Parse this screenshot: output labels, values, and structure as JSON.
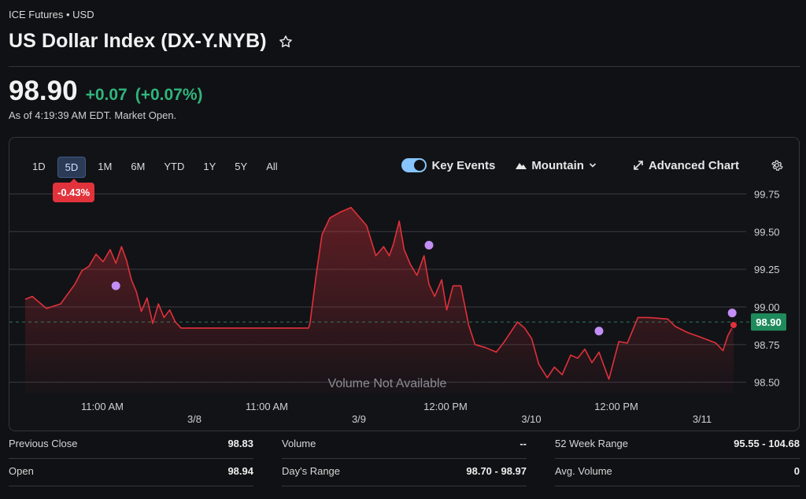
{
  "header": {
    "exchange": "ICE Futures • USD",
    "title": "US Dollar Index (DX-Y.NYB)",
    "price": "98.90",
    "change": "+0.07",
    "change_pct": "(+0.07%)",
    "as_of": "As of 4:19:39 AM EDT. Market Open."
  },
  "chart_toolbar": {
    "ranges": [
      "1D",
      "5D",
      "1M",
      "6M",
      "YTD",
      "1Y",
      "5Y",
      "All"
    ],
    "active_range": "5D",
    "period_change_badge": "-0.43%",
    "key_events_label": "Key Events",
    "mountain_label": "Mountain",
    "advanced_chart_label": "Advanced Chart"
  },
  "chart_overlay": {
    "volume_note": "Volume Not Available",
    "current_price_tag": "98.90"
  },
  "colors": {
    "line": "#e0313a",
    "positive": "#2fb57c",
    "event_dot": "#c38ef5",
    "price_tag": "#1f8a5b"
  },
  "chart_data": {
    "type": "area",
    "y_ticks": [
      "99.75",
      "99.50",
      "99.25",
      "99.00",
      "98.75",
      "98.50"
    ],
    "ylim": [
      98.42,
      99.82
    ],
    "reference_line": 98.9,
    "time_labels": [
      "11:00 AM",
      "11:00 AM",
      "12:00 PM",
      "12:00 PM"
    ],
    "date_labels": [
      "3/8",
      "3/9",
      "3/10",
      "3/11"
    ],
    "x_range": [
      0,
      100
    ],
    "values": [
      [
        0,
        99.05
      ],
      [
        1,
        99.07
      ],
      [
        3,
        98.99
      ],
      [
        5,
        99.02
      ],
      [
        7,
        99.15
      ],
      [
        8,
        99.24
      ],
      [
        9,
        99.27
      ],
      [
        10,
        99.35
      ],
      [
        11,
        99.3
      ],
      [
        12,
        99.38
      ],
      [
        12.8,
        99.29
      ],
      [
        13.6,
        99.4
      ],
      [
        14.3,
        99.31
      ],
      [
        15,
        99.18
      ],
      [
        15.7,
        99.1
      ],
      [
        16.4,
        98.97
      ],
      [
        17.2,
        99.06
      ],
      [
        18,
        98.89
      ],
      [
        18.8,
        99.02
      ],
      [
        19.6,
        98.93
      ],
      [
        20.4,
        98.98
      ],
      [
        21.2,
        98.9
      ],
      [
        22,
        98.86
      ],
      [
        40,
        98.86
      ],
      [
        40.2,
        98.89
      ],
      [
        41.1,
        99.22
      ],
      [
        41.9,
        99.48
      ],
      [
        43,
        99.59
      ],
      [
        44.5,
        99.63
      ],
      [
        46,
        99.66
      ],
      [
        47.1,
        99.6
      ],
      [
        48.2,
        99.54
      ],
      [
        49.5,
        99.34
      ],
      [
        50.6,
        99.4
      ],
      [
        51.4,
        99.34
      ],
      [
        52,
        99.42
      ],
      [
        52.8,
        99.57
      ],
      [
        53.5,
        99.38
      ],
      [
        54.4,
        99.28
      ],
      [
        55.3,
        99.21
      ],
      [
        56.3,
        99.34
      ],
      [
        57,
        99.15
      ],
      [
        57.8,
        99.07
      ],
      [
        58.8,
        99.18
      ],
      [
        59.5,
        98.98
      ],
      [
        60.4,
        99.14
      ],
      [
        61.5,
        99.14
      ],
      [
        62.6,
        98.88
      ],
      [
        63.5,
        98.75
      ],
      [
        65,
        98.73
      ],
      [
        66.5,
        98.7
      ],
      [
        67.5,
        98.76
      ],
      [
        69.5,
        98.9
      ],
      [
        70.5,
        98.86
      ],
      [
        71.5,
        98.79
      ],
      [
        72.5,
        98.62
      ],
      [
        73.7,
        98.53
      ],
      [
        74.7,
        98.6
      ],
      [
        75.8,
        98.55
      ],
      [
        77,
        98.68
      ],
      [
        78,
        98.66
      ],
      [
        79,
        98.72
      ],
      [
        80,
        98.63
      ],
      [
        81,
        98.7
      ],
      [
        82.4,
        98.52
      ],
      [
        83.8,
        98.77
      ],
      [
        85,
        98.76
      ],
      [
        86.5,
        98.93
      ],
      [
        88,
        98.93
      ],
      [
        90.7,
        98.92
      ],
      [
        91.8,
        98.87
      ],
      [
        93.5,
        98.83
      ],
      [
        95.3,
        98.8
      ],
      [
        97.5,
        98.76
      ],
      [
        98.5,
        98.71
      ],
      [
        99.2,
        98.81
      ],
      [
        100,
        98.88
      ]
    ],
    "key_events": [
      [
        12.8,
        99.14
      ],
      [
        57,
        99.41
      ],
      [
        81,
        98.84
      ],
      [
        99.8,
        98.96
      ]
    ]
  },
  "stats": [
    {
      "label": "Previous Close",
      "value": "98.83"
    },
    {
      "label": "Volume",
      "value": "--"
    },
    {
      "label": "52 Week Range",
      "value": "95.55 - 104.68"
    },
    {
      "label": "Open",
      "value": "98.94"
    },
    {
      "label": "Day's Range",
      "value": "98.70 - 98.97"
    },
    {
      "label": "Avg. Volume",
      "value": "0"
    }
  ]
}
